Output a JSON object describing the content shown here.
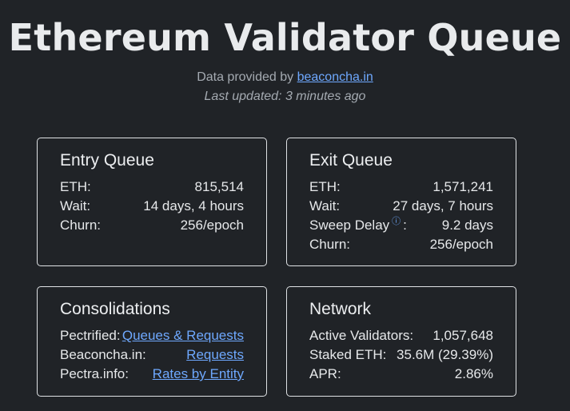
{
  "header": {
    "title": "Ethereum Validator Queue",
    "provided_prefix": "Data provided by",
    "provided_link": "beaconcha.in",
    "last_updated": "Last updated: 3 minutes ago"
  },
  "entry_queue": {
    "title": "Entry Queue",
    "rows": [
      {
        "label": "ETH:",
        "value": "815,514"
      },
      {
        "label": "Wait:",
        "value": "14 days, 4 hours"
      },
      {
        "label": "Churn:",
        "value": "256/epoch"
      }
    ]
  },
  "exit_queue": {
    "title": "Exit Queue",
    "rows": [
      {
        "label": "ETH:",
        "value": "1,571,241"
      },
      {
        "label": "Wait:",
        "value": "27 days, 7 hours"
      },
      {
        "label": "Sweep Delay",
        "value": "9.2 days",
        "info_icon": "info-circle-icon"
      },
      {
        "label": "Churn:",
        "value": "256/epoch"
      }
    ]
  },
  "consolidations": {
    "title": "Consolidations",
    "rows": [
      {
        "label": "Pectrified:",
        "value": "Queues & Requests"
      },
      {
        "label": "Beaconcha.in:",
        "value": "Requests"
      },
      {
        "label": "Pectra.info:",
        "value": "Rates by Entity"
      }
    ]
  },
  "network": {
    "title": "Network",
    "rows": [
      {
        "label": "Active Validators:",
        "value": "1,057,648"
      },
      {
        "label": "Staked ETH:",
        "value": "35.6M (29.39%)"
      },
      {
        "label": "APR:",
        "value": "2.86%"
      }
    ]
  },
  "colors": {
    "background": "#202327",
    "link": "#6ea8fe",
    "border": "#dfe2e5",
    "muted_text": "#a4aab1"
  }
}
